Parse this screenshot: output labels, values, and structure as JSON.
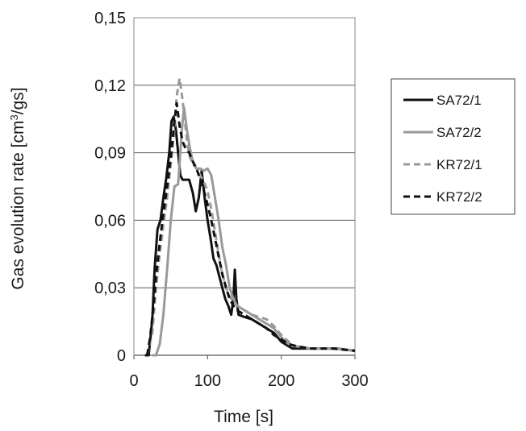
{
  "chart_data": {
    "type": "line",
    "title": "",
    "xlabel": "Time [s]",
    "ylabel_main": "Gas evolution rate [cm",
    "ylabel_sup": "3",
    "ylabel_tail": "/gs]",
    "xlim": [
      0,
      300
    ],
    "ylim": [
      0,
      0.15
    ],
    "x_ticks": [
      0,
      100,
      200,
      300
    ],
    "x_tick_labels": [
      "0",
      "100",
      "200",
      "300"
    ],
    "y_ticks": [
      0,
      0.03,
      0.06,
      0.09,
      0.12,
      0.15
    ],
    "y_tick_labels": [
      "0",
      "0,03",
      "0,06",
      "0,09",
      "0,12",
      "0,15"
    ],
    "grid": "horizontal",
    "legend_position": "right",
    "series": [
      {
        "name": "SA72/1",
        "color": "#111111",
        "dash": "solid",
        "x": [
          15,
          20,
          25,
          28,
          32,
          36,
          40,
          44,
          48,
          51,
          54,
          57,
          60,
          63,
          66,
          70,
          75,
          80,
          84,
          88,
          92,
          96,
          100,
          104,
          108,
          112,
          116,
          120,
          124,
          128,
          132,
          135,
          137,
          139,
          142,
          150,
          160,
          170,
          180,
          190,
          195,
          200,
          205,
          210,
          215,
          220,
          230,
          250,
          275,
          300
        ],
        "y": [
          0,
          0,
          0.016,
          0.038,
          0.056,
          0.06,
          0.07,
          0.079,
          0.09,
          0.104,
          0.106,
          0.1,
          0.09,
          0.08,
          0.078,
          0.078,
          0.078,
          0.072,
          0.064,
          0.07,
          0.082,
          0.07,
          0.06,
          0.052,
          0.043,
          0.04,
          0.035,
          0.03,
          0.025,
          0.022,
          0.018,
          0.025,
          0.038,
          0.025,
          0.018,
          0.017,
          0.016,
          0.014,
          0.012,
          0.01,
          0.008,
          0.006,
          0.005,
          0.004,
          0.003,
          0.003,
          0.003,
          0.003,
          0.003,
          0.002
        ]
      },
      {
        "name": "SA72/2",
        "color": "#999999",
        "dash": "solid",
        "x": [
          25,
          30,
          35,
          40,
          45,
          50,
          55,
          60,
          65,
          68,
          72,
          76,
          80,
          85,
          90,
          95,
          100,
          105,
          110,
          115,
          120,
          125,
          130,
          135,
          140,
          150,
          160,
          170,
          180,
          190,
          200,
          210,
          220,
          240,
          270,
          300
        ],
        "y": [
          0,
          0,
          0.005,
          0.018,
          0.038,
          0.06,
          0.075,
          0.076,
          0.1,
          0.11,
          0.1,
          0.092,
          0.086,
          0.083,
          0.083,
          0.082,
          0.083,
          0.08,
          0.07,
          0.06,
          0.048,
          0.04,
          0.03,
          0.025,
          0.022,
          0.02,
          0.018,
          0.016,
          0.014,
          0.012,
          0.008,
          0.005,
          0.004,
          0.003,
          0.003,
          0.002
        ]
      },
      {
        "name": "KR72/1",
        "color": "#999999",
        "dash": "dashed",
        "x": [
          18,
          25,
          30,
          35,
          40,
          45,
          50,
          55,
          58,
          62,
          65,
          68,
          72,
          76,
          80,
          85,
          90,
          95,
          100,
          105,
          110,
          115,
          120,
          125,
          130,
          135,
          140,
          150,
          160,
          170,
          180,
          190,
          200,
          210,
          220,
          240,
          270,
          300
        ],
        "y": [
          0,
          0.01,
          0.03,
          0.045,
          0.058,
          0.07,
          0.085,
          0.1,
          0.115,
          0.123,
          0.116,
          0.108,
          0.095,
          0.088,
          0.085,
          0.083,
          0.08,
          0.077,
          0.073,
          0.065,
          0.055,
          0.045,
          0.036,
          0.03,
          0.026,
          0.024,
          0.022,
          0.02,
          0.018,
          0.017,
          0.016,
          0.013,
          0.009,
          0.006,
          0.004,
          0.003,
          0.003,
          0.002
        ]
      },
      {
        "name": "KR72/2",
        "color": "#111111",
        "dash": "dashed",
        "x": [
          18,
          22,
          26,
          30,
          35,
          40,
          45,
          50,
          55,
          58,
          62,
          66,
          70,
          75,
          80,
          85,
          90,
          95,
          100,
          105,
          110,
          115,
          120,
          125,
          130,
          135,
          140,
          150,
          160,
          170,
          180,
          190,
          200,
          210,
          220,
          240,
          270,
          300
        ],
        "y": [
          0,
          0.008,
          0.02,
          0.035,
          0.05,
          0.063,
          0.075,
          0.088,
          0.104,
          0.112,
          0.102,
          0.095,
          0.092,
          0.09,
          0.086,
          0.083,
          0.078,
          0.073,
          0.067,
          0.06,
          0.052,
          0.044,
          0.036,
          0.03,
          0.025,
          0.022,
          0.02,
          0.018,
          0.016,
          0.014,
          0.012,
          0.009,
          0.007,
          0.005,
          0.004,
          0.003,
          0.003,
          0.002
        ]
      }
    ]
  }
}
